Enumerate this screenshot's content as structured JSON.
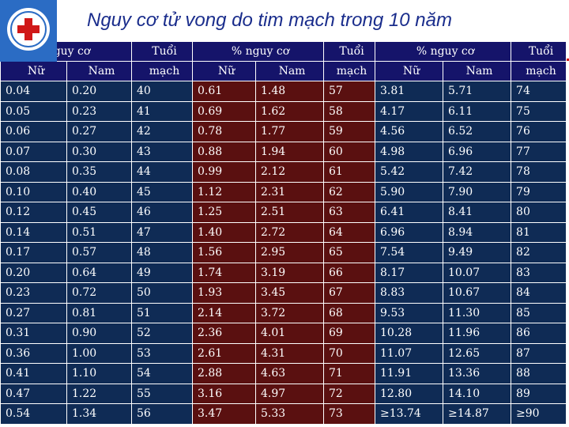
{
  "title": "Nguy cơ tử vong do tim mạch trong 10 năm",
  "header": {
    "row1": [
      "nguy cơ",
      "Tuổi",
      "% nguy cơ",
      "Tuổi",
      "% nguy cơ",
      "Tuổi"
    ],
    "row2": [
      "Nữ",
      "Nam",
      "mạch",
      "Nữ",
      "Nam",
      "mạch",
      "Nữ",
      "Nam",
      "mạch"
    ]
  },
  "rows": [
    [
      "0.04",
      "0.20",
      "40",
      "0.61",
      "1.48",
      "57",
      "3.81",
      "5.71",
      "74"
    ],
    [
      "0.05",
      "0.23",
      "41",
      "0.69",
      "1.62",
      "58",
      "4.17",
      "6.11",
      "75"
    ],
    [
      "0.06",
      "0.27",
      "42",
      "0.78",
      "1.77",
      "59",
      "4.56",
      "6.52",
      "76"
    ],
    [
      "0.07",
      "0.30",
      "43",
      "0.88",
      "1.94",
      "60",
      "4.98",
      "6.96",
      "77"
    ],
    [
      "0.08",
      "0.35",
      "44",
      "0.99",
      "2.12",
      "61",
      "5.42",
      "7.42",
      "78"
    ],
    [
      "0.10",
      "0.40",
      "45",
      "1.12",
      "2.31",
      "62",
      "5.90",
      "7.90",
      "79"
    ],
    [
      "0.12",
      "0.45",
      "46",
      "1.25",
      "2.51",
      "63",
      "6.41",
      "8.41",
      "80"
    ],
    [
      "0.14",
      "0.51",
      "47",
      "1.40",
      "2.72",
      "64",
      "6.96",
      "8.94",
      "81"
    ],
    [
      "0.17",
      "0.57",
      "48",
      "1.56",
      "2.95",
      "65",
      "7.54",
      "9.49",
      "82"
    ],
    [
      "0.20",
      "0.64",
      "49",
      "1.74",
      "3.19",
      "66",
      "8.17",
      "10.07",
      "83"
    ],
    [
      "0.23",
      "0.72",
      "50",
      "1.93",
      "3.45",
      "67",
      "8.83",
      "10.67",
      "84"
    ],
    [
      "0.27",
      "0.81",
      "51",
      "2.14",
      "3.72",
      "68",
      "9.53",
      "11.30",
      "85"
    ],
    [
      "0.31",
      "0.90",
      "52",
      "2.36",
      "4.01",
      "69",
      "10.28",
      "11.96",
      "86"
    ],
    [
      "0.36",
      "1.00",
      "53",
      "2.61",
      "4.31",
      "70",
      "11.07",
      "12.65",
      "87"
    ],
    [
      "0.41",
      "1.10",
      "54",
      "2.88",
      "4.63",
      "71",
      "11.91",
      "13.36",
      "88"
    ],
    [
      "0.47",
      "1.22",
      "55",
      "3.16",
      "4.97",
      "72",
      "12.80",
      "14.10",
      "89"
    ],
    [
      "0.54",
      "1.34",
      "56",
      "3.47",
      "5.33",
      "73",
      "≥13.74",
      "≥14.87",
      "≥90"
    ]
  ],
  "colors": {
    "title": "#1a2d8c",
    "header_bg": "#15146a",
    "band_blue": "#0f2b55",
    "band_red": "#5a1010",
    "logo_bg": "#2b6cc4",
    "logo_cross": "#d01818"
  },
  "logo": {
    "icon": "medical-cross-logo-icon"
  }
}
